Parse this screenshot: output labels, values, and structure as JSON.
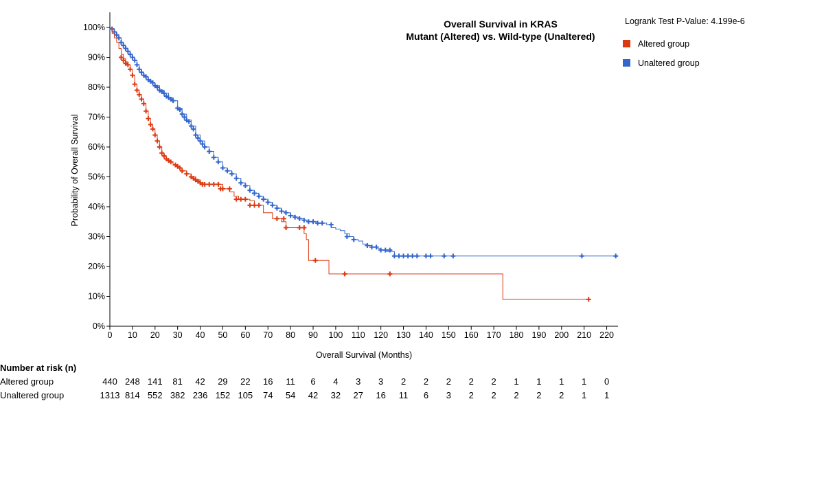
{
  "chart_data": {
    "type": "line",
    "title_line1": "Overall Survival in KRAS",
    "title_line2": "Mutant (Altered) vs. Wild-type (Unaltered)",
    "xlabel": "Overall Survival (Months)",
    "ylabel": "Probability of Overall Survival",
    "xlim": [
      0,
      225
    ],
    "ylim": [
      0,
      100
    ],
    "x_ticks": [
      0,
      10,
      20,
      30,
      40,
      50,
      60,
      70,
      80,
      90,
      100,
      110,
      120,
      130,
      140,
      150,
      160,
      170,
      180,
      190,
      200,
      210,
      220
    ],
    "y_ticks": [
      0,
      10,
      20,
      30,
      40,
      50,
      60,
      70,
      80,
      90,
      100
    ],
    "y_tick_labels": [
      "0%",
      "10%",
      "20%",
      "30%",
      "40%",
      "50%",
      "60%",
      "70%",
      "80%",
      "90%",
      "100%"
    ],
    "pvalue_text": "Logrank Test P-Value: 4.199e-6",
    "legend_position": "top-right",
    "series": [
      {
        "name": "Altered group",
        "color": "#dc3912",
        "x": [
          0,
          1,
          2,
          3,
          4,
          5,
          6,
          7,
          8,
          9,
          10,
          11,
          12,
          13,
          14,
          15,
          16,
          17,
          18,
          19,
          20,
          21,
          22,
          23,
          24,
          25,
          26,
          27,
          28,
          30,
          32,
          34,
          36,
          38,
          40,
          42,
          44,
          47,
          50,
          53,
          55,
          57,
          60,
          62,
          64,
          66,
          68,
          70,
          72,
          74,
          76,
          78,
          80,
          82,
          84,
          86,
          87,
          88,
          90,
          93,
          95,
          97,
          100,
          104,
          110,
          120,
          123,
          130,
          150,
          170,
          174,
          190,
          200,
          212
        ],
        "y": [
          100,
          98,
          96.5,
          95,
          93,
          91,
          89.5,
          88.5,
          87.5,
          86,
          84,
          81,
          79,
          77.5,
          76,
          74.5,
          72,
          69.5,
          67.5,
          66,
          64,
          62,
          60,
          58,
          57,
          56,
          55.5,
          55,
          54,
          53,
          52,
          51,
          50,
          49,
          48,
          47.5,
          47.5,
          47.5,
          46,
          45,
          43.5,
          42.5,
          42.5,
          42,
          40.5,
          40.5,
          38,
          38,
          36,
          36,
          35,
          33,
          33,
          33,
          33,
          31,
          29,
          22,
          22,
          22,
          22,
          17.5,
          17.5,
          17.5,
          17.5,
          17.5,
          17.5,
          17.5,
          17.5,
          17.5,
          9,
          9,
          9,
          9
        ],
        "censor_x": [
          5,
          6,
          7,
          8,
          9,
          10,
          11,
          12,
          13,
          14,
          15,
          16,
          17,
          18,
          19,
          20,
          21,
          22,
          23,
          24,
          25,
          26,
          27,
          29,
          30,
          31,
          32,
          34,
          36,
          37,
          38,
          39,
          40,
          41,
          42,
          44,
          46,
          48,
          49,
          50,
          53,
          56,
          58,
          60,
          62,
          64,
          66,
          74,
          77,
          78,
          84,
          86,
          91,
          104,
          124,
          212
        ],
        "censor_y": [
          90,
          89,
          88,
          87.5,
          86,
          84,
          81,
          79,
          77.5,
          76,
          74.5,
          72,
          69.5,
          67.5,
          66,
          64,
          62,
          60,
          58,
          57,
          56,
          55.5,
          55,
          54,
          53.5,
          53,
          52,
          51,
          50,
          49.5,
          49,
          48.5,
          48,
          47.5,
          47.5,
          47.5,
          47.5,
          47.5,
          46,
          46,
          46,
          42.5,
          42.5,
          42.5,
          40.5,
          40.5,
          40.5,
          36,
          36,
          33,
          33,
          33,
          22,
          17.5,
          17.5,
          9
        ]
      },
      {
        "name": "Unaltered group",
        "color": "#3366cc",
        "x": [
          0,
          1,
          2,
          3,
          4,
          5,
          6,
          7,
          8,
          9,
          10,
          11,
          12,
          13,
          14,
          15,
          16,
          17,
          18,
          19,
          20,
          22,
          24,
          26,
          28,
          30,
          32,
          34,
          36,
          38,
          40,
          42,
          44,
          46,
          48,
          50,
          52,
          54,
          56,
          58,
          60,
          62,
          64,
          66,
          68,
          70,
          72,
          74,
          76,
          78,
          80,
          82,
          84,
          86,
          88,
          90,
          92,
          94,
          96,
          98,
          100,
          102,
          104,
          106,
          108,
          110,
          112,
          114,
          116,
          118,
          120,
          122,
          124,
          126,
          130,
          140,
          150,
          160,
          200,
          210,
          224
        ],
        "y": [
          100,
          99.5,
          98.5,
          97.5,
          96.5,
          95,
          94,
          93,
          92,
          91,
          90,
          89,
          87.5,
          86,
          85,
          84,
          83.5,
          82.5,
          82,
          81.5,
          80.5,
          79,
          78,
          76.5,
          75.5,
          73,
          71,
          69,
          67,
          64,
          62,
          60,
          58.5,
          56.5,
          55,
          53,
          52,
          51,
          49.5,
          48,
          47,
          45.5,
          44.5,
          43.5,
          42.5,
          41.5,
          40.5,
          39.5,
          38.5,
          38,
          37,
          36.5,
          36,
          35.5,
          35,
          35,
          34.5,
          34.5,
          34,
          33,
          32.5,
          32,
          31,
          30,
          29,
          28.5,
          27.5,
          27,
          26.5,
          26,
          25.5,
          25,
          25,
          23.5,
          23.5,
          23.5,
          23.5,
          23.5,
          23.5,
          23.5,
          23.5
        ],
        "censor_x": [
          1,
          2,
          3,
          4,
          5,
          6,
          7,
          8,
          9,
          10,
          11,
          12,
          13,
          14,
          15,
          16,
          17,
          18,
          19,
          20,
          21,
          22,
          23,
          24,
          25,
          26,
          27,
          28,
          30,
          31,
          32,
          33,
          34,
          35,
          36,
          37,
          38,
          39,
          40,
          41,
          42,
          44,
          46,
          48,
          50,
          52,
          54,
          56,
          58,
          60,
          62,
          64,
          66,
          68,
          70,
          72,
          74,
          76,
          78,
          80,
          82,
          84,
          86,
          88,
          90,
          92,
          94,
          98,
          105,
          108,
          114,
          116,
          118,
          120,
          122,
          124,
          126,
          128,
          130,
          132,
          134,
          136,
          140,
          142,
          148,
          152,
          209,
          224
        ],
        "censor_y": [
          99.5,
          98.5,
          97.5,
          96.5,
          95,
          94,
          93,
          92,
          91,
          90,
          89,
          87.5,
          86,
          85,
          84,
          83.5,
          82.5,
          82,
          81.5,
          80.5,
          80,
          79,
          78.5,
          78,
          77,
          76.5,
          76,
          75.5,
          73,
          72.5,
          71,
          70,
          69,
          68.5,
          67,
          66,
          64,
          63,
          62,
          61,
          60,
          58.5,
          56.5,
          55,
          53,
          52,
          51,
          49.5,
          48,
          47,
          45.5,
          44.5,
          43.5,
          42.5,
          41.5,
          40.5,
          39.5,
          38.5,
          38,
          37,
          36.5,
          36,
          35.5,
          35,
          35,
          34.5,
          34.5,
          34,
          30,
          29,
          27,
          26.5,
          26.5,
          25.5,
          25.5,
          25.5,
          23.5,
          23.5,
          23.5,
          23.5,
          23.5,
          23.5,
          23.5,
          23.5,
          23.5,
          23.5,
          23.5,
          23.5
        ]
      }
    ],
    "risk_table": {
      "title": "Number at risk (n)",
      "rows": [
        {
          "label": "Altered group",
          "values": [
            "440",
            "248",
            "141",
            "81",
            "42",
            "29",
            "22",
            "16",
            "11",
            "6",
            "4",
            "3",
            "3",
            "2",
            "2",
            "2",
            "2",
            "2",
            "1",
            "1",
            "1",
            "1",
            "0"
          ]
        },
        {
          "label": "Unaltered group",
          "values": [
            "1313",
            "814",
            "552",
            "382",
            "236",
            "152",
            "105",
            "74",
            "54",
            "42",
            "32",
            "27",
            "16",
            "11",
            "6",
            "3",
            "2",
            "2",
            "2",
            "2",
            "2",
            "1",
            "1"
          ]
        }
      ]
    }
  }
}
